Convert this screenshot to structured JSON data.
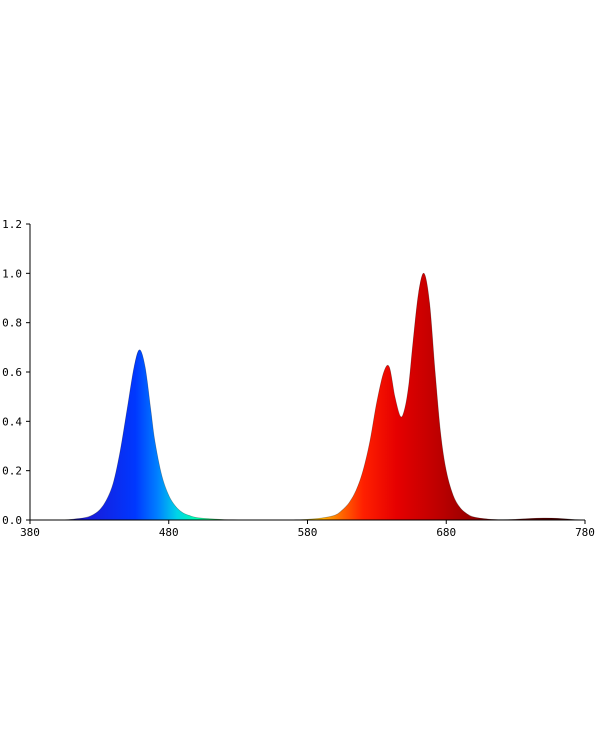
{
  "chart_data": {
    "type": "area",
    "title": "",
    "xlabel": "",
    "ylabel": "",
    "xlim": [
      380,
      780
    ],
    "ylim": [
      0,
      1.2
    ],
    "x_ticks": [
      380,
      480,
      580,
      680,
      780
    ],
    "x_tick_labels": [
      "380",
      "480",
      "580",
      "680",
      "780"
    ],
    "y_ticks": [
      0,
      0.2,
      0.4,
      0.6,
      0.8,
      1.0,
      1.2
    ],
    "y_tick_labels": [
      "0.0",
      "0.2",
      "0.4",
      "0.6",
      "0.8",
      "1.0",
      "1.2"
    ],
    "grid": false,
    "series": [
      {
        "x": [
          380,
          400,
          410,
          420,
          425,
          430,
          435,
          440,
          445,
          450,
          455,
          459,
          463,
          467,
          470,
          475,
          480,
          485,
          490,
          495,
          500,
          510,
          520,
          530,
          540,
          550,
          560,
          570,
          580,
          590,
          600,
          605,
          610,
          615,
          620,
          625,
          630,
          635,
          639,
          643,
          647,
          650,
          653,
          656,
          660,
          664,
          668,
          672,
          676,
          680,
          685,
          690,
          695,
          700,
          710,
          720,
          730,
          740,
          750,
          760,
          770,
          780
        ],
        "values": [
          0.0,
          0.0,
          0.003,
          0.01,
          0.02,
          0.04,
          0.08,
          0.15,
          0.28,
          0.45,
          0.62,
          0.69,
          0.62,
          0.45,
          0.32,
          0.18,
          0.1,
          0.055,
          0.03,
          0.018,
          0.01,
          0.005,
          0.002,
          0.001,
          0.0,
          0.0,
          0.0,
          0.001,
          0.003,
          0.008,
          0.02,
          0.04,
          0.07,
          0.12,
          0.2,
          0.32,
          0.48,
          0.6,
          0.62,
          0.5,
          0.42,
          0.45,
          0.55,
          0.72,
          0.92,
          1.0,
          0.88,
          0.6,
          0.35,
          0.2,
          0.1,
          0.05,
          0.025,
          0.012,
          0.004,
          0.002,
          0.003,
          0.006,
          0.008,
          0.007,
          0.003,
          0.0
        ]
      }
    ]
  }
}
